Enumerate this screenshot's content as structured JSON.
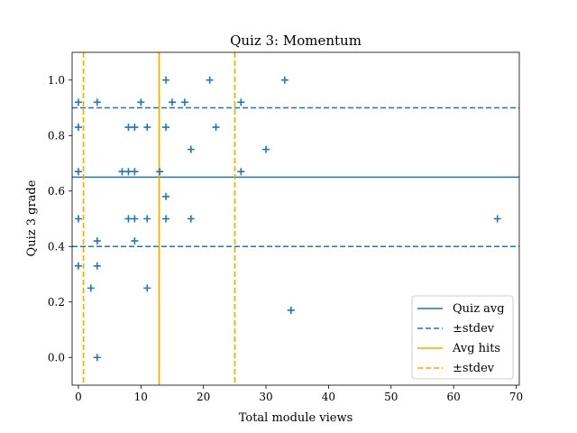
{
  "chart_data": {
    "type": "scatter",
    "title": "Quiz 3: Momentum",
    "xlabel": "Total module views",
    "ylabel": "Quiz 3 grade",
    "xlim": [
      -1,
      70.5
    ],
    "ylim": [
      -0.1,
      1.1
    ],
    "xticks": [
      0,
      10,
      20,
      30,
      40,
      50,
      60,
      70
    ],
    "yticks": [
      0.0,
      0.2,
      0.4,
      0.6,
      0.8,
      1.0
    ],
    "grid": false,
    "legend_position": "bottom-right",
    "colors": {
      "quiz": "#1f77b4",
      "hits": "#ffa500"
    },
    "points": [
      {
        "x": 0,
        "y": 0.92
      },
      {
        "x": 0,
        "y": 0.83
      },
      {
        "x": 0,
        "y": 0.67
      },
      {
        "x": 0,
        "y": 0.5
      },
      {
        "x": 0,
        "y": 0.33
      },
      {
        "x": 2,
        "y": 0.25
      },
      {
        "x": 3,
        "y": 0.92
      },
      {
        "x": 3,
        "y": 0.42
      },
      {
        "x": 3,
        "y": 0.33
      },
      {
        "x": 3,
        "y": 0.0
      },
      {
        "x": 7,
        "y": 0.67
      },
      {
        "x": 8,
        "y": 0.83
      },
      {
        "x": 8,
        "y": 0.67
      },
      {
        "x": 8,
        "y": 0.5
      },
      {
        "x": 9,
        "y": 0.83
      },
      {
        "x": 9,
        "y": 0.67
      },
      {
        "x": 9,
        "y": 0.5
      },
      {
        "x": 9,
        "y": 0.42
      },
      {
        "x": 10,
        "y": 0.92
      },
      {
        "x": 11,
        "y": 0.83
      },
      {
        "x": 11,
        "y": 0.5
      },
      {
        "x": 11,
        "y": 0.25
      },
      {
        "x": 13,
        "y": 0.67
      },
      {
        "x": 14,
        "y": 1.0
      },
      {
        "x": 14,
        "y": 0.83
      },
      {
        "x": 14,
        "y": 0.58
      },
      {
        "x": 14,
        "y": 0.5
      },
      {
        "x": 15,
        "y": 0.92
      },
      {
        "x": 17,
        "y": 0.92
      },
      {
        "x": 18,
        "y": 0.75
      },
      {
        "x": 18,
        "y": 0.5
      },
      {
        "x": 21,
        "y": 1.0
      },
      {
        "x": 22,
        "y": 0.83
      },
      {
        "x": 26,
        "y": 0.92
      },
      {
        "x": 26,
        "y": 0.67
      },
      {
        "x": 30,
        "y": 0.75
      },
      {
        "x": 33,
        "y": 1.0
      },
      {
        "x": 34,
        "y": 0.17
      },
      {
        "x": 67,
        "y": 0.5
      }
    ],
    "reference_lines": {
      "quiz_avg": 0.65,
      "quiz_stdev_low": 0.4,
      "quiz_stdev_high": 0.9,
      "hits_avg": 12.9,
      "hits_stdev_low": 0.8,
      "hits_stdev_high": 25.0
    },
    "legend": [
      {
        "label": "Quiz avg",
        "color": "#1f77b4",
        "style": "solid"
      },
      {
        "label": "±stdev",
        "color": "#1f77b4",
        "style": "dashed"
      },
      {
        "label": "Avg hits",
        "color": "#ffa500",
        "style": "solid"
      },
      {
        "label": "±stdev",
        "color": "#ffa500",
        "style": "dashed"
      }
    ]
  }
}
